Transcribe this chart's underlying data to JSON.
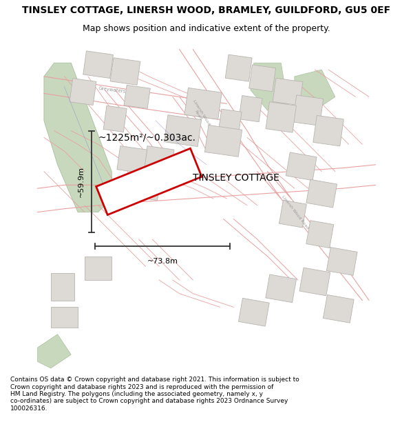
{
  "title": "TINSLEY COTTAGE, LINERSH WOOD, BRAMLEY, GUILDFORD, GU5 0EF",
  "subtitle": "Map shows position and indicative extent of the property.",
  "property_label": "TINSLEY COTTAGE",
  "area_label": "~1225m²/~0.303ac.",
  "width_label": "~73.8m",
  "height_label": "~59.9m",
  "footer_text": "Contains OS data © Crown copyright and database right 2021. This information is subject to\nCrown copyright and database rights 2023 and is reproduced with the permission of\nHM Land Registry. The polygons (including the associated geometry, namely x, y\nco-ordinates) are subject to Crown copyright and database rights 2023 Ordnance Survey\n100026316.",
  "map_bg": "#f8f5f0",
  "road_color": "#e8a0a0",
  "building_fill": "#dddad5",
  "building_edge": "#b8b5b0",
  "green_fill": "#c8d8bc",
  "green_edge": "#a8c0a0",
  "property_fill": "#ffffff",
  "property_edge": "#cc0000",
  "dim_color": "#333333",
  "road_label_color": "#999999",
  "title_fs": 10,
  "subtitle_fs": 9,
  "footer_fs": 6.5
}
